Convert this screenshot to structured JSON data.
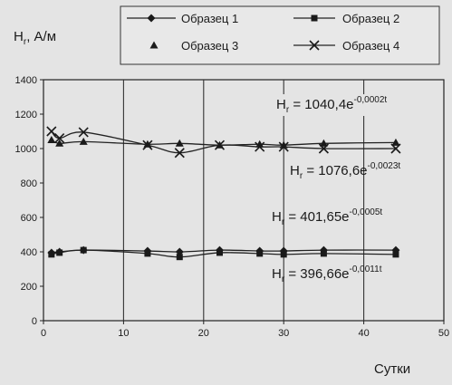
{
  "chart_data": {
    "type": "line",
    "xlabel": "Сутки",
    "ylabel_main": "H",
    "ylabel_sub": "r",
    "ylabel_unit": ", А/м",
    "xlim": [
      0,
      50
    ],
    "ylim": [
      0,
      1400
    ],
    "xticks": [
      0,
      10,
      20,
      30,
      40,
      50
    ],
    "yticks": [
      0,
      200,
      400,
      600,
      800,
      1000,
      1200,
      1400
    ],
    "grid": {
      "vertical": true,
      "horizontal": false
    },
    "legend_position": "top",
    "series": [
      {
        "name": "Образец 1",
        "marker": "diamond",
        "x": [
          1,
          2,
          5,
          13,
          17,
          22,
          27,
          30,
          35,
          44
        ],
        "y": [
          395,
          400,
          410,
          405,
          400,
          410,
          405,
          405,
          410,
          410
        ]
      },
      {
        "name": "Образец 2",
        "marker": "square",
        "x": [
          1,
          2,
          5,
          13,
          17,
          22,
          27,
          30,
          35,
          44
        ],
        "y": [
          385,
          395,
          410,
          390,
          370,
          395,
          390,
          385,
          390,
          385
        ]
      },
      {
        "name": "Образец 3",
        "marker": "triangle",
        "x": [
          1,
          2,
          5,
          13,
          17,
          22,
          27,
          30,
          35,
          44
        ],
        "y": [
          1050,
          1030,
          1040,
          1025,
          1030,
          1020,
          1025,
          1020,
          1030,
          1035
        ]
      },
      {
        "name": "Образец 4",
        "marker": "x",
        "x": [
          1,
          2,
          5,
          13,
          17,
          22,
          27,
          30,
          35,
          44
        ],
        "y": [
          1100,
          1060,
          1095,
          1020,
          975,
          1020,
          1010,
          1010,
          1000,
          1000
        ]
      }
    ],
    "annotations": [
      {
        "main": "H",
        "sub": "r",
        "eq": " = 1040,4e",
        "sup": "-0,0002t"
      },
      {
        "main": "H",
        "sub": "r",
        "eq": " = 1076,6e",
        "sup": "-0,0023t"
      },
      {
        "main": "H",
        "sub": "r",
        "eq": " = 401,65e",
        "sup": "-0,0005t"
      },
      {
        "main": "H",
        "sub": "r",
        "eq": " = 396,66e",
        "sup": "-0,0011t"
      }
    ]
  }
}
